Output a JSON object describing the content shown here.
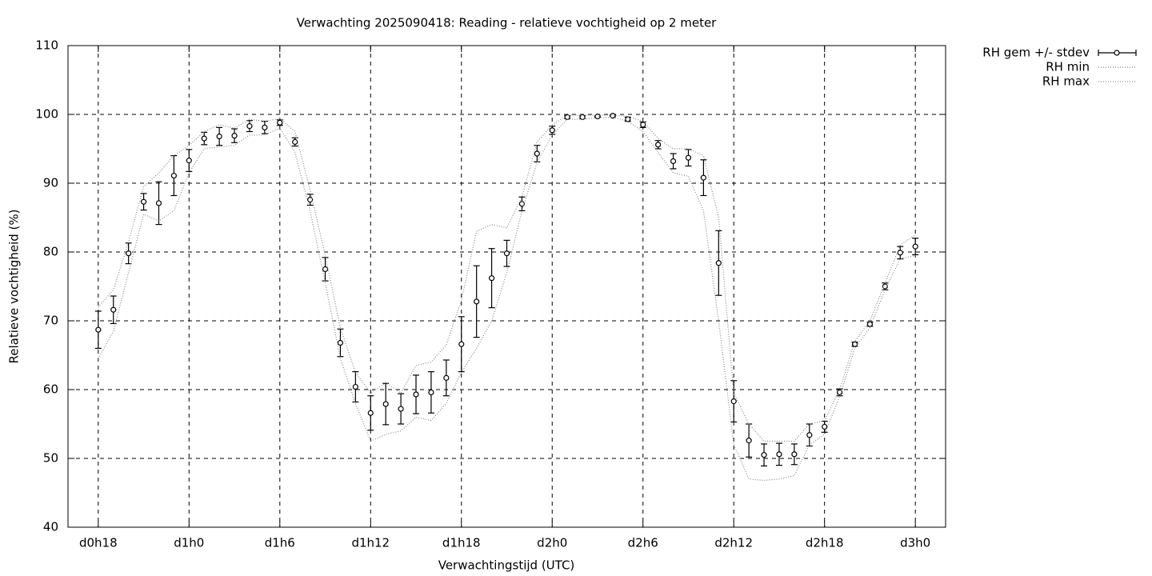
{
  "chart_data": {
    "type": "errorbar",
    "title": "Verwachting 2025090418: Reading - relatieve vochtigheid op 2 meter",
    "x_label": "Verwachtingstijd (UTC)",
    "y_label": "Relatieve vochtigheid (%)",
    "x": [
      18,
      19,
      20,
      21,
      22,
      23,
      24,
      25,
      26,
      27,
      28,
      29,
      30,
      31,
      32,
      33,
      34,
      35,
      36,
      37,
      38,
      39,
      40,
      41,
      42,
      43,
      44,
      45,
      46,
      47,
      48,
      49,
      50,
      51,
      52,
      53,
      54,
      55,
      56,
      57,
      58,
      59,
      60,
      61,
      62,
      63,
      64,
      65,
      66,
      67,
      68,
      69,
      70,
      71,
      72
    ],
    "series": [
      {
        "name": "RH gem +/- stdev",
        "color": "#000000",
        "values": [
          68.7,
          71.6,
          79.8,
          87.3,
          87.1,
          91.1,
          93.3,
          96.5,
          96.8,
          96.9,
          98.3,
          98.1,
          98.8,
          96.0,
          87.6,
          77.5,
          66.8,
          60.4,
          56.6,
          57.9,
          57.2,
          59.3,
          59.6,
          61.7,
          66.6,
          72.8,
          76.2,
          79.8,
          87.0,
          94.3,
          97.7,
          99.6,
          99.6,
          99.7,
          99.8,
          99.3,
          98.5,
          95.6,
          93.2,
          93.7,
          90.8,
          78.4,
          58.3,
          52.6,
          50.5,
          50.6,
          50.6,
          53.4,
          54.6,
          59.6,
          66.6,
          69.5,
          75.0,
          79.9,
          80.8
        ],
        "errors": [
          2.7,
          2.0,
          1.5,
          1.2,
          3.1,
          2.9,
          1.6,
          0.9,
          1.3,
          1.0,
          0.8,
          0.9,
          0.4,
          0.6,
          0.8,
          1.7,
          2.0,
          2.2,
          2.5,
          3.0,
          2.2,
          2.8,
          3.0,
          2.6,
          4.0,
          5.2,
          4.3,
          1.9,
          1.0,
          1.2,
          0.6,
          0.2,
          0.2,
          0.1,
          0.1,
          0.3,
          0.4,
          0.6,
          1.1,
          1.2,
          2.6,
          4.7,
          3.0,
          2.4,
          1.6,
          1.6,
          1.5,
          1.6,
          0.8,
          0.5,
          0.3,
          0.3,
          0.5,
          0.9,
          1.2
        ]
      },
      {
        "name": "RH min",
        "color": "#888888",
        "style": "dotted",
        "values": [
          64.5,
          68.5,
          77,
          85.5,
          84.5,
          86,
          91.5,
          95,
          95.3,
          95.5,
          97,
          97,
          98,
          94.5,
          86,
          75.5,
          64.5,
          58,
          52.5,
          53.5,
          54,
          56,
          55.5,
          58,
          62.5,
          66,
          70,
          77,
          86,
          93,
          97,
          99.3,
          99.3,
          99.5,
          99.6,
          99,
          97.5,
          94.5,
          91.5,
          91,
          86,
          70,
          52,
          47,
          46.8,
          47,
          47.5,
          52,
          53.5,
          59,
          66,
          69,
          74.5,
          79,
          79.5
        ]
      },
      {
        "name": "RH max",
        "color": "#888888",
        "style": "dotted",
        "values": [
          72,
          74.5,
          81.5,
          89.5,
          91.5,
          94,
          95.5,
          97.5,
          98.5,
          98,
          99.3,
          99,
          99.4,
          97.5,
          89,
          79.5,
          69,
          62.5,
          59.5,
          61,
          59.5,
          63.5,
          64,
          66.5,
          73,
          83,
          84,
          83.5,
          88,
          96,
          98.5,
          99.9,
          99.9,
          99.9,
          99.9,
          99.7,
          99,
          96.5,
          95,
          95,
          94,
          85,
          59.5,
          55,
          52.5,
          52.5,
          52.5,
          55,
          55.5,
          60,
          67,
          70,
          75.5,
          81,
          82.5
        ]
      }
    ],
    "xlim": [
      16,
      74
    ],
    "xticks": [
      {
        "value": 18,
        "label": "d0h18"
      },
      {
        "value": 24,
        "label": "d1h0"
      },
      {
        "value": 30,
        "label": "d1h6"
      },
      {
        "value": 36,
        "label": "d1h12"
      },
      {
        "value": 42,
        "label": "d1h18"
      },
      {
        "value": 48,
        "label": "d2h0"
      },
      {
        "value": 54,
        "label": "d2h6"
      },
      {
        "value": 60,
        "label": "d2h12"
      },
      {
        "value": 66,
        "label": "d2h18"
      },
      {
        "value": 72,
        "label": "d3h0"
      }
    ],
    "ylim": [
      40,
      110
    ],
    "yticks": [
      40,
      50,
      60,
      70,
      80,
      90,
      100,
      110
    ],
    "grid": true,
    "legend": "outside-top-right"
  }
}
